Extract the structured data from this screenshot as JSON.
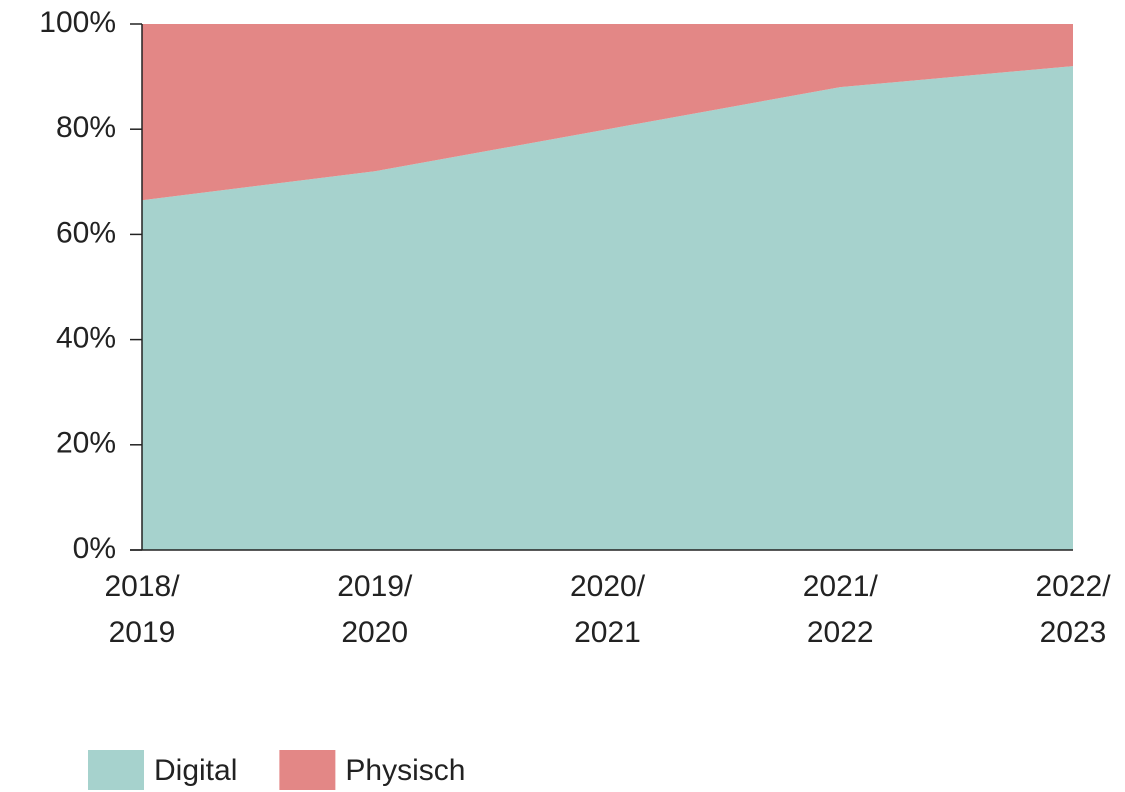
{
  "chart_data": {
    "type": "area",
    "stacked": true,
    "categories": [
      "2018/2019",
      "2019/2020",
      "2020/2021",
      "2021/2022",
      "2022/2023"
    ],
    "series": [
      {
        "name": "Digital",
        "color": "#a6d2cd",
        "values": [
          66.5,
          72,
          80,
          88,
          92
        ]
      },
      {
        "name": "Physisch",
        "color": "#e38786",
        "values": [
          33.5,
          28,
          20,
          12,
          8
        ]
      }
    ],
    "ylim": [
      0,
      100
    ],
    "yticks": [
      {
        "value": 0,
        "label": "0%"
      },
      {
        "value": 20,
        "label": "20%"
      },
      {
        "value": 40,
        "label": "40%"
      },
      {
        "value": 60,
        "label": "60%"
      },
      {
        "value": 80,
        "label": "80%"
      },
      {
        "value": 100,
        "label": "100%"
      }
    ],
    "legend": "bottom-left"
  }
}
